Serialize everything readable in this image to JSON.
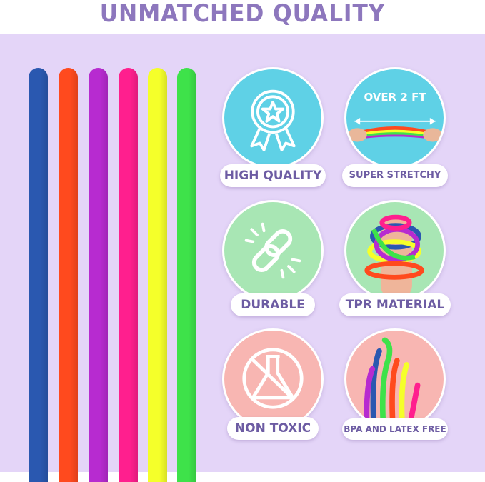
{
  "title": "UNMATCHED QUALITY",
  "colors": {
    "title": "#8d77bd",
    "background": "#e4d5f8",
    "label_text": "#6d5ca3",
    "cyan": "#5fd1e6",
    "green": "#a8e6b4",
    "pink": "#f8b6b2"
  },
  "straws": [
    "#2a58b0",
    "#ff4a1e",
    "#b72bd0",
    "#ff1f8e",
    "#f5ff2a",
    "#3ee24a"
  ],
  "features": [
    {
      "label": "HIGH QUALITY",
      "icon": "award-badge-icon",
      "color": "cyan"
    },
    {
      "label": "SUPER STRETCHY",
      "icon": "stretch-photo",
      "color": "cyan",
      "circle_text": "OVER 2 FT"
    },
    {
      "label": "DURABLE",
      "icon": "broken-chain-icon",
      "color": "green"
    },
    {
      "label": "TPR MATERIAL",
      "icon": "wrapped-hand-photo",
      "color": "green"
    },
    {
      "label": "NON TOXIC",
      "icon": "no-flask-icon",
      "color": "pink"
    },
    {
      "label": "BPA AND LATEX FREE",
      "icon": "straws-photo",
      "color": "pink"
    }
  ]
}
